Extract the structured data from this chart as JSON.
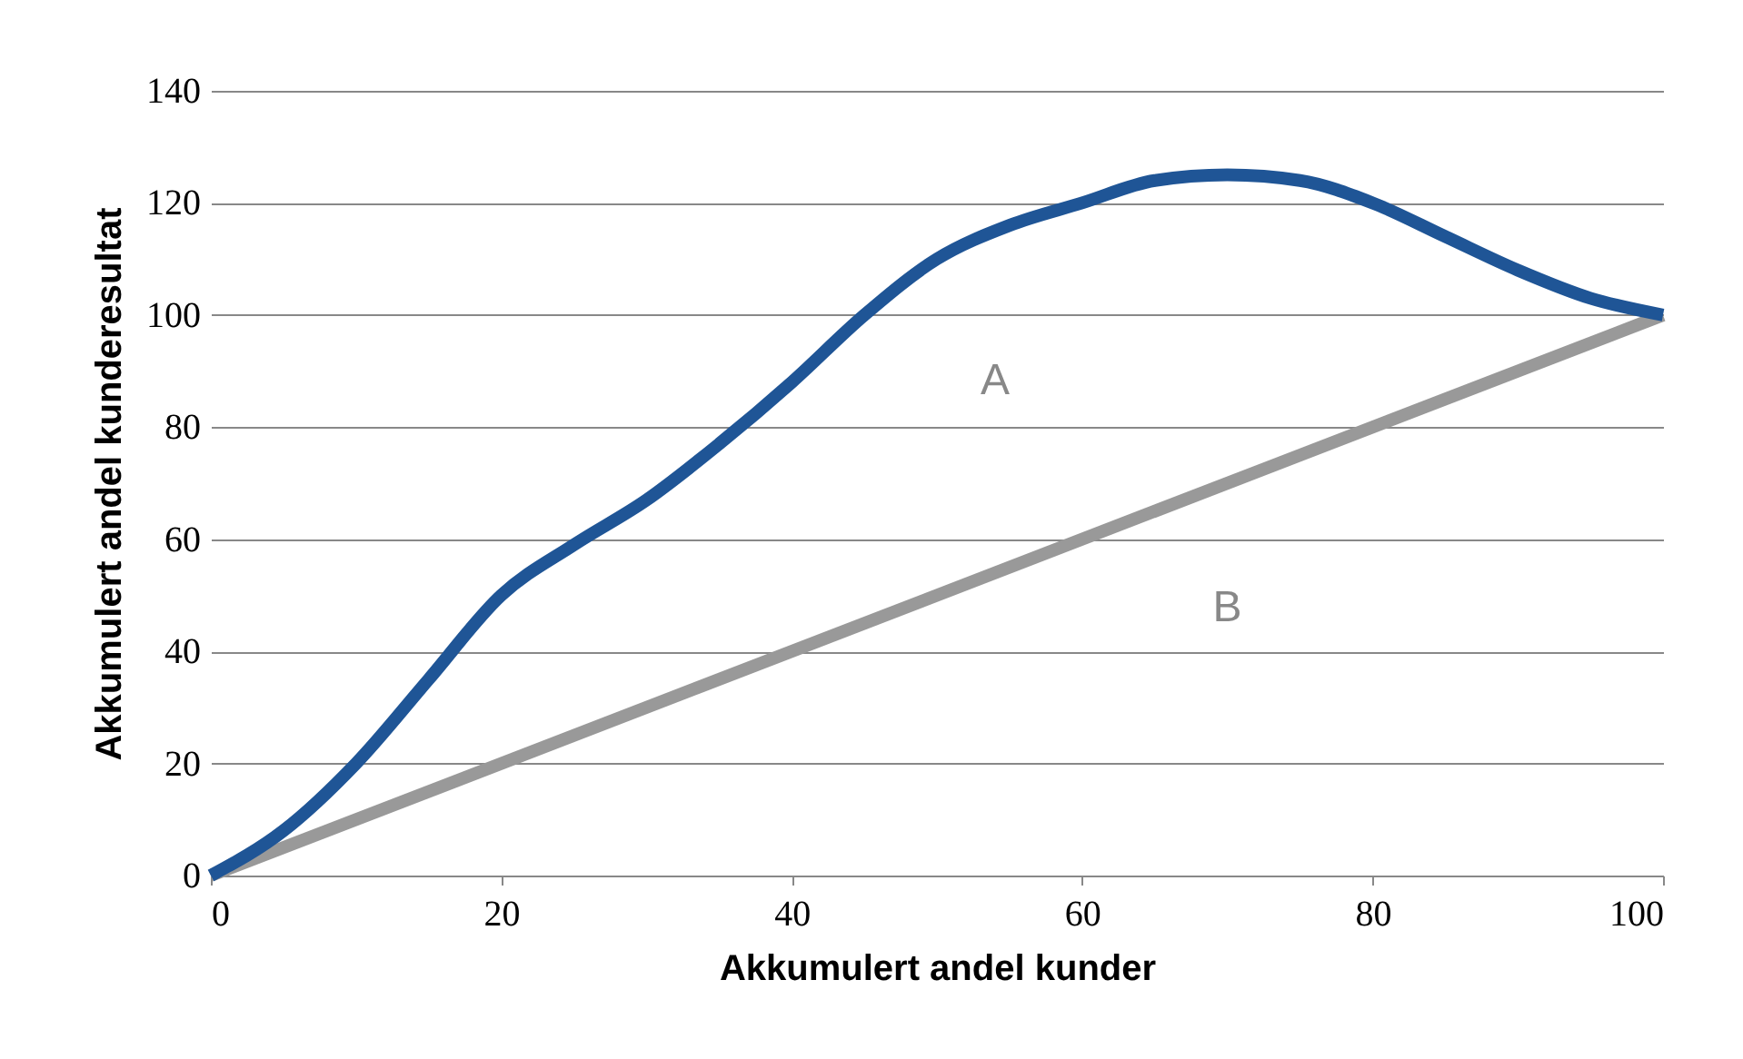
{
  "chart_data": {
    "type": "line",
    "xlabel": "Akkumulert andel kunder",
    "ylabel": "Akkumulert andel kunderesultat",
    "x": [
      0,
      5,
      10,
      15,
      20,
      25,
      30,
      35,
      40,
      45,
      50,
      55,
      60,
      65,
      70,
      75,
      80,
      85,
      90,
      95,
      100
    ],
    "series": [
      {
        "color": "#1f5596",
        "values": [
          0,
          8,
          20,
          35,
          50,
          59,
          67,
          77,
          88,
          100,
          110,
          116,
          120,
          124,
          125,
          124,
          120,
          114,
          108,
          103,
          100
        ]
      },
      {
        "color": "#999999",
        "x": [
          0,
          100
        ],
        "values": [
          0,
          100
        ]
      }
    ],
    "annotations": [
      "A",
      "B"
    ],
    "xlim": [
      0,
      100
    ],
    "xticks": [
      0,
      20,
      40,
      60,
      80,
      100
    ],
    "ylim": [
      0,
      140
    ],
    "yticks": [
      0,
      20,
      40,
      60,
      80,
      100,
      120,
      140
    ],
    "grid": "y",
    "marker": "none",
    "line_style": "solid"
  }
}
